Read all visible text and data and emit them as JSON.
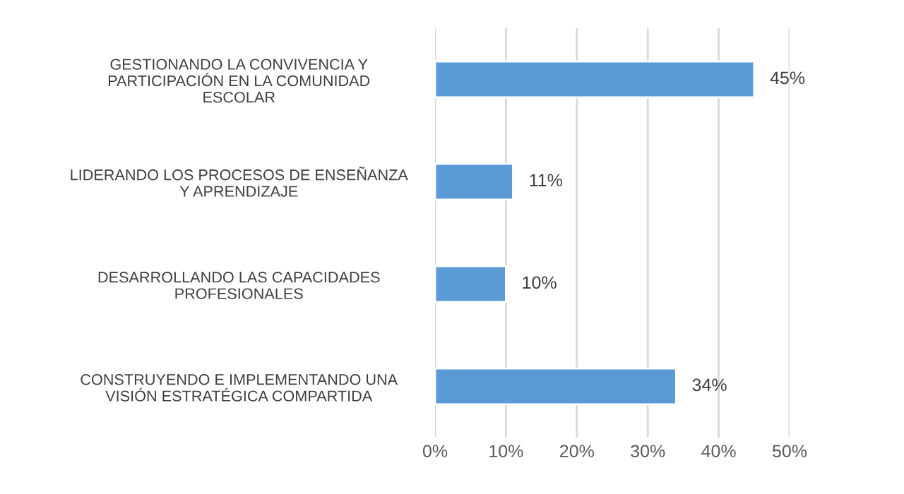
{
  "chart_data": {
    "type": "bar",
    "orientation": "horizontal",
    "categories": [
      "GESTIONANDO LA CONVIVENCIA Y\nPARTICIPACIÓN EN LA COMUNIDAD\nESCOLAR",
      "LIDERANDO LOS PROCESOS DE ENSEÑANZA\nY APRENDIZAJE",
      "DESARROLLANDO LAS CAPACIDADES\nPROFESIONALES",
      "CONSTRUYENDO E IMPLEMENTANDO UNA\nVISIÓN ESTRATÉGICA COMPARTIDA"
    ],
    "values": [
      45,
      11,
      10,
      34
    ],
    "value_labels": [
      "45%",
      "11%",
      "10%",
      "34%"
    ],
    "color": "#5b9bd5",
    "xlim": [
      0,
      50
    ],
    "xticks": [
      {
        "value": 0,
        "label": "0%"
      },
      {
        "value": 10,
        "label": "10%"
      },
      {
        "value": 20,
        "label": "20%"
      },
      {
        "value": 30,
        "label": "30%"
      },
      {
        "value": 40,
        "label": "40%"
      },
      {
        "value": 50,
        "label": "50%"
      }
    ],
    "grid": "x",
    "legend": false
  }
}
